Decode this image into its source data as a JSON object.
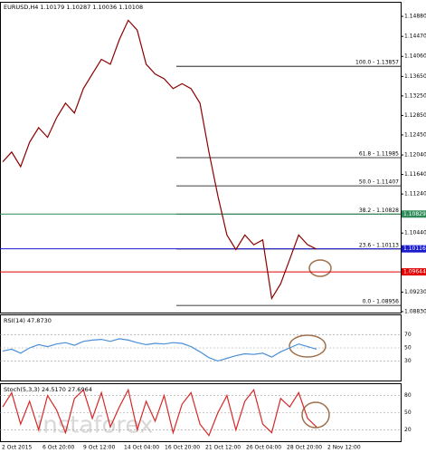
{
  "header": "EURUSD,H4  1.10179 1.10287 1.10036 1.10108",
  "price_panel": {
    "ylim": [
      1.0881,
      1.1516
    ],
    "yticks": [
      {
        "value": 1.1488,
        "label": "1.14880"
      },
      {
        "value": 1.1447,
        "label": "1.14470"
      },
      {
        "value": 1.1406,
        "label": "1.14060"
      },
      {
        "value": 1.1365,
        "label": "1.13650"
      },
      {
        "value": 1.1325,
        "label": "1.13250"
      },
      {
        "value": 1.1285,
        "label": "1.12850"
      },
      {
        "value": 1.1245,
        "label": "1.12450"
      },
      {
        "value": 1.1204,
        "label": "1.12040"
      },
      {
        "value": 1.1164,
        "label": "1.11640"
      },
      {
        "value": 1.1124,
        "label": "1.11240"
      },
      {
        "value": 1.1044,
        "label": "1.10440"
      },
      {
        "value": 1.0923,
        "label": "1.09230"
      },
      {
        "value": 1.0883,
        "label": "1.08830"
      }
    ],
    "price_levels": [
      {
        "value": 1.10829,
        "color": "#2e8b57"
      },
      {
        "value": 1.10116,
        "color": "#1a1acd"
      },
      {
        "value": 1.09644,
        "color": "#e00000"
      }
    ],
    "fib_levels": [
      {
        "label": "100.0 - 1.13857",
        "value": 1.13857
      },
      {
        "label": "61.8 - 1.11985",
        "value": 1.11985
      },
      {
        "label": "50.0 - 1.11407",
        "value": 1.11407
      },
      {
        "label": "38.2 - 1.10828",
        "value": 1.10828
      },
      {
        "label": "23.6 - 1.10113",
        "value": 1.10113
      },
      {
        "label": "0.0 - 1.08956",
        "value": 1.08956
      }
    ],
    "close": [
      1.119,
      1.121,
      1.118,
      1.123,
      1.126,
      1.124,
      1.128,
      1.131,
      1.129,
      1.134,
      1.137,
      1.14,
      1.139,
      1.144,
      1.148,
      1.146,
      1.139,
      1.137,
      1.136,
      1.134,
      1.135,
      1.134,
      1.131,
      1.121,
      1.112,
      1.104,
      1.101,
      1.104,
      1.102,
      1.103,
      1.091,
      1.094,
      1.099,
      1.104,
      1.102,
      1.1011
    ]
  },
  "rsi_panel": {
    "label": "RSI(14) 47.8730",
    "ylim": [
      0,
      100
    ],
    "yticks": [
      70,
      50,
      30
    ],
    "values": [
      45,
      48,
      42,
      50,
      55,
      52,
      56,
      58,
      54,
      60,
      62,
      63,
      60,
      64,
      62,
      58,
      55,
      57,
      56,
      58,
      57,
      52,
      44,
      35,
      30,
      34,
      38,
      41,
      40,
      42,
      36,
      44,
      50,
      56,
      52,
      48
    ]
  },
  "stoch_panel": {
    "label": "Stoch(5,3,3) 24.5170 27.6964",
    "ylim": [
      0,
      100
    ],
    "yticks": [
      80,
      50,
      20
    ],
    "values": [
      60,
      85,
      30,
      70,
      20,
      80,
      55,
      15,
      75,
      90,
      40,
      85,
      25,
      60,
      90,
      20,
      70,
      35,
      80,
      15,
      65,
      85,
      30,
      10,
      50,
      80,
      20,
      70,
      90,
      30,
      15,
      75,
      60,
      85,
      40,
      25
    ]
  },
  "x_labels": [
    "2 Oct 2015",
    "6 Oct 20:00",
    "9 Oct 12:00",
    "14 Oct 04:00",
    "16 Oct 20:00",
    "21 Oct 12:00",
    "26 Oct 04:00",
    "28 Oct 20:00",
    "2 Nov 12:00"
  ],
  "watermark": "instaforex"
}
